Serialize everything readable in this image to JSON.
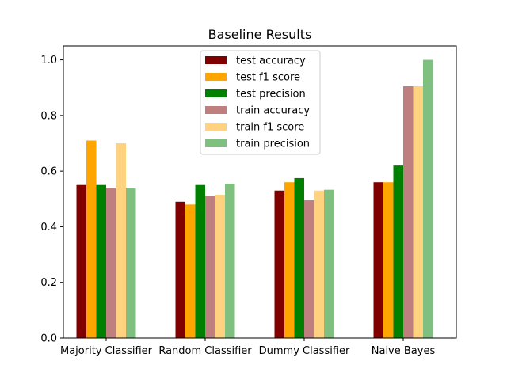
{
  "chart_data": {
    "type": "bar",
    "title": "Baseline Results",
    "xlabel": "",
    "ylabel": "",
    "ylim": [
      0,
      1.05
    ],
    "yticks": [
      "0.0",
      "0.2",
      "0.4",
      "0.6",
      "0.8",
      "1.0"
    ],
    "categories": [
      "Majority Classifier",
      "Random Classifier",
      "Dummy Classifier",
      "Naive Bayes"
    ],
    "grid": false,
    "legend_position": "top-center",
    "series": [
      {
        "name": "test accuracy",
        "color": "#800000",
        "values": [
          0.55,
          0.49,
          0.53,
          0.56
        ]
      },
      {
        "name": "test f1 score",
        "color": "#ffa500",
        "values": [
          0.71,
          0.48,
          0.56,
          0.56
        ]
      },
      {
        "name": "test precision",
        "color": "#008000",
        "values": [
          0.55,
          0.55,
          0.575,
          0.62
        ]
      },
      {
        "name": "train accuracy",
        "color": "#bf7f7f",
        "values": [
          0.54,
          0.51,
          0.495,
          0.905
        ]
      },
      {
        "name": "train f1 score",
        "color": "#ffd27f",
        "values": [
          0.7,
          0.515,
          0.53,
          0.905
        ]
      },
      {
        "name": "train precision",
        "color": "#7fbf7f",
        "values": [
          0.54,
          0.555,
          0.533,
          1.0
        ]
      }
    ]
  }
}
